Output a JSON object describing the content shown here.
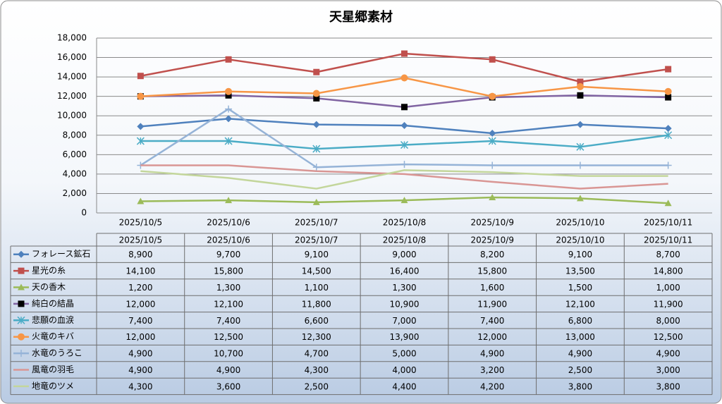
{
  "chart_data": {
    "type": "line",
    "title": "天星郷素材",
    "categories": [
      "2025/10/5",
      "2025/10/6",
      "2025/10/7",
      "2025/10/8",
      "2025/10/9",
      "2025/10/10",
      "2025/10/11"
    ],
    "ylim": [
      0,
      18000
    ],
    "yticks": [
      {
        "value": 0,
        "label": "0"
      },
      {
        "value": 2000,
        "label": "2,000"
      },
      {
        "value": 4000,
        "label": "4,000"
      },
      {
        "value": 6000,
        "label": "6,000"
      },
      {
        "value": 8000,
        "label": "8,000"
      },
      {
        "value": 10000,
        "label": "10,000"
      },
      {
        "value": 12000,
        "label": "12,000"
      },
      {
        "value": 14000,
        "label": "14,000"
      },
      {
        "value": 16000,
        "label": "16,000"
      },
      {
        "value": 18000,
        "label": "18,000"
      }
    ],
    "grid": true,
    "series": [
      {
        "name": "フォレース鉱石",
        "color": "#4f81bd",
        "marker": "diamond",
        "values": [
          8900,
          9700,
          9100,
          9000,
          8200,
          9100,
          8700
        ],
        "value_labels": [
          "8,900",
          "9,700",
          "9,100",
          "9,000",
          "8,200",
          "9,100",
          "8,700"
        ]
      },
      {
        "name": "星光の糸",
        "color": "#c0504d",
        "marker": "square",
        "values": [
          14100,
          15800,
          14500,
          16400,
          15800,
          13500,
          14800
        ],
        "value_labels": [
          "14,100",
          "15,800",
          "14,500",
          "16,400",
          "15,800",
          "13,500",
          "14,800"
        ]
      },
      {
        "name": "天の香木",
        "color": "#9bbb59",
        "marker": "triangle",
        "values": [
          1200,
          1300,
          1100,
          1300,
          1600,
          1500,
          1000
        ],
        "value_labels": [
          "1,200",
          "1,300",
          "1,100",
          "1,300",
          "1,600",
          "1,500",
          "1,000"
        ]
      },
      {
        "name": "純白の結晶",
        "color": "#8064a2",
        "marker": "square",
        "marker_color": "#000000",
        "values": [
          12000,
          12100,
          11800,
          10900,
          11900,
          12100,
          11900
        ],
        "value_labels": [
          "12,000",
          "12,100",
          "11,800",
          "10,900",
          "11,900",
          "12,100",
          "11,900"
        ]
      },
      {
        "name": "悲願の血涙",
        "color": "#4bacc6",
        "marker": "star",
        "values": [
          7400,
          7400,
          6600,
          7000,
          7400,
          6800,
          8000
        ],
        "value_labels": [
          "7,400",
          "7,400",
          "6,600",
          "7,000",
          "7,400",
          "6,800",
          "8,000"
        ]
      },
      {
        "name": "火竜のキバ",
        "color": "#f79646",
        "marker": "circle",
        "values": [
          12000,
          12500,
          12300,
          13900,
          12000,
          13000,
          12500
        ],
        "value_labels": [
          "12,000",
          "12,500",
          "12,300",
          "13,900",
          "12,000",
          "13,000",
          "12,500"
        ]
      },
      {
        "name": "水竜のうろこ",
        "color": "#95b3d7",
        "marker": "plus",
        "values": [
          4900,
          10700,
          4700,
          5000,
          4900,
          4900,
          4900
        ],
        "value_labels": [
          "4,900",
          "10,700",
          "4,700",
          "5,000",
          "4,900",
          "4,900",
          "4,900"
        ]
      },
      {
        "name": "風竜の羽毛",
        "color": "#d99694",
        "marker": "none",
        "values": [
          4900,
          4900,
          4300,
          4000,
          3200,
          2500,
          3000
        ],
        "value_labels": [
          "4,900",
          "4,900",
          "4,300",
          "4,000",
          "3,200",
          "2,500",
          "3,000"
        ]
      },
      {
        "name": "地竜のツメ",
        "color": "#c3d69b",
        "marker": "none",
        "values": [
          4300,
          3600,
          2500,
          4400,
          4200,
          3800,
          3800
        ],
        "value_labels": [
          "4,300",
          "3,600",
          "2,500",
          "4,400",
          "4,200",
          "3,800",
          "3,800"
        ]
      }
    ]
  }
}
